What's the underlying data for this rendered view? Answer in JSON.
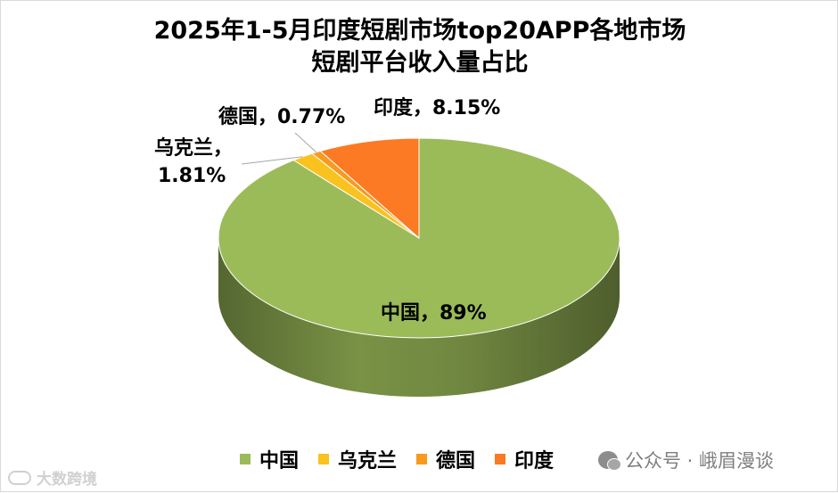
{
  "chart_data": {
    "type": "pie",
    "title": "2025年1-5月印度短剧市场top20APP各地市场短剧平台收入量占比",
    "title_lines": [
      "2025年1-5月印度短剧市场top20APP各地市场",
      "短剧平台收入量占比"
    ],
    "style": "3d-pie",
    "legend_position": "bottom",
    "slices": [
      {
        "name": "中国",
        "value": 89,
        "label": "中国，89%",
        "color": "#9bbb59"
      },
      {
        "name": "乌克兰",
        "value": 1.81,
        "label_line1": "乌克兰，",
        "label_line2": "1.81%",
        "color": "#fac21f"
      },
      {
        "name": "德国",
        "value": 0.77,
        "label": "德国，0.77%",
        "color": "#f79a1e"
      },
      {
        "name": "印度",
        "value": 8.15,
        "label": "印度，8.15%",
        "color": "#fb7a23"
      }
    ]
  },
  "legend": {
    "items": [
      "中国",
      "乌克兰",
      "德国",
      "印度"
    ]
  },
  "watermark": {
    "right_text": "公众号 · 峨眉漫谈",
    "left_text": "大数跨境",
    "left_icon": "brand-logo-icon",
    "right_icon": "wechat-icon"
  }
}
